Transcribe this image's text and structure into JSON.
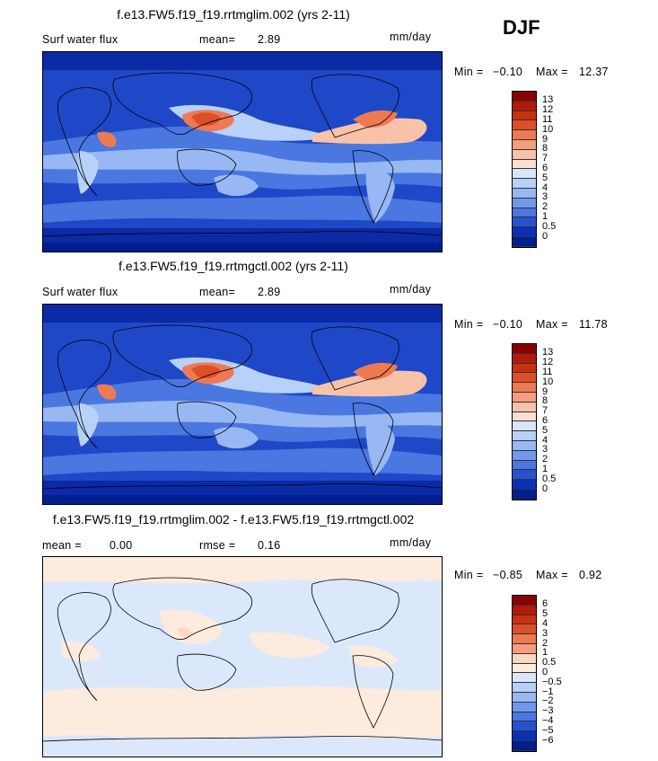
{
  "season": "DJF",
  "units": "mm/day",
  "panels": [
    {
      "title": "f.e13.FW5.f19_f19.rrtmglim.002 (yrs 2-11)",
      "field": "Surf water flux",
      "stat1_label": "mean=",
      "stat1_value": "2.89",
      "stat2_label": "",
      "stat2_value": "",
      "min_label": "Min =",
      "min_value": "−0.10",
      "max_label": "Max =",
      "max_value": "12.37",
      "type": "abs"
    },
    {
      "title": "f.e13.FW5.f19_f19.rrtmgctl.002 (yrs 2-11)",
      "field": "Surf water flux",
      "stat1_label": "mean=",
      "stat1_value": "2.89",
      "stat2_label": "",
      "stat2_value": "",
      "min_label": "Min =",
      "min_value": "−0.10",
      "max_label": "Max =",
      "max_value": "11.78",
      "type": "abs"
    },
    {
      "title": "f.e13.FW5.f19_f19.rrtmglim.002 - f.e13.FW5.f19_f19.rrtmgctl.002",
      "field": "",
      "stat1_label": "mean =",
      "stat1_value": "0.00",
      "stat2_label": "rmse =",
      "stat2_value": "0.16",
      "min_label": "Min =",
      "min_value": "−0.85",
      "max_label": "Max =",
      "max_value": "0.92",
      "type": "diff"
    }
  ],
  "colorbar_abs": {
    "labels": [
      "13",
      "12",
      "11",
      "10",
      "9",
      "8",
      "7",
      "6",
      "5",
      "4",
      "3",
      "2",
      "1",
      "0.5",
      "0"
    ],
    "colors": [
      "#8b0000",
      "#b01a08",
      "#c9300f",
      "#dd4f26",
      "#ee7a52",
      "#f49e7e",
      "#f8c2a8",
      "#fbe0d0",
      "#d7e6fb",
      "#b8d1f8",
      "#97b8f3",
      "#7099ec",
      "#4a77e0",
      "#2553d0",
      "#0b30b8",
      "#001f8f"
    ]
  },
  "colorbar_diff": {
    "labels": [
      "6",
      "5",
      "4",
      "3",
      "2",
      "1",
      "0.5",
      "0",
      "−0.5",
      "−1",
      "−2",
      "−3",
      "−4",
      "−5",
      "−6"
    ],
    "colors": [
      "#8b0000",
      "#b01a08",
      "#c9300f",
      "#dd4f26",
      "#ee7a52",
      "#f49e7e",
      "#fbd8c3",
      "#fdebde",
      "#dbe8fb",
      "#b8d1f8",
      "#97b8f3",
      "#7099ec",
      "#4a77e0",
      "#2553d0",
      "#0b30b8",
      "#001f8f"
    ]
  }
}
